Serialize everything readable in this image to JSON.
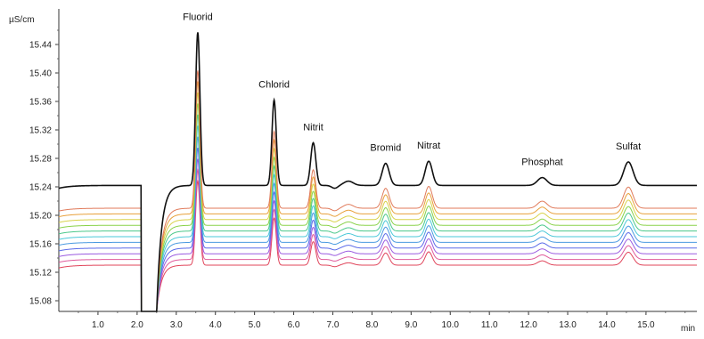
{
  "chart_data": {
    "type": "line",
    "title": "",
    "xlabel": "min",
    "ylabel": "µS/cm",
    "xlim": [
      0,
      16.3
    ],
    "ylim": [
      15.065,
      15.49
    ],
    "x_ticks": [
      1.0,
      2.0,
      3.0,
      4.0,
      5.0,
      6.0,
      7.0,
      8.0,
      9.0,
      10.0,
      11.0,
      12.0,
      13.0,
      14.0,
      15.0
    ],
    "x_tick_labels": [
      "1.0",
      "2.0",
      "3.0",
      "4.0",
      "5.0",
      "6.0",
      "7.0",
      "8.0",
      "9.0",
      "10.0",
      "11.0",
      "12.0",
      "13.0",
      "14.0",
      "15.0"
    ],
    "y_ticks": [
      15.08,
      15.12,
      15.16,
      15.2,
      15.24,
      15.28,
      15.32,
      15.36,
      15.4,
      15.44
    ],
    "y_tick_labels": [
      "15.08",
      "15.12",
      "15.16",
      "15.20",
      "15.24",
      "15.28",
      "15.32",
      "15.36",
      "15.40",
      "15.44"
    ],
    "grid": false,
    "legend": "none",
    "peaks": [
      {
        "name": "Fluorid",
        "x": 3.55,
        "height": 0.215,
        "width": 0.055
      },
      {
        "name": "Chlorid",
        "x": 5.5,
        "height": 0.12,
        "width": 0.055
      },
      {
        "name": "Nitrit",
        "x": 6.5,
        "height": 0.06,
        "width": 0.065
      },
      {
        "name": "Bromid",
        "x": 8.35,
        "height": 0.031,
        "width": 0.09
      },
      {
        "name": "Nitrat",
        "x": 9.45,
        "height": 0.034,
        "width": 0.09
      },
      {
        "name": "Phosphat",
        "x": 12.35,
        "height": 0.011,
        "width": 0.12
      },
      {
        "name": "Sulfat",
        "x": 14.55,
        "height": 0.033,
        "width": 0.12
      }
    ],
    "system_dip": {
      "start": 2.1,
      "end": 2.5,
      "min": 15.065
    },
    "series": [
      {
        "color": "#e0445a",
        "baseline": 15.13
      },
      {
        "color": "#e05a9a",
        "baseline": 15.138
      },
      {
        "color": "#9a5ae0",
        "baseline": 15.146
      },
      {
        "color": "#5a6ae8",
        "baseline": 15.154
      },
      {
        "color": "#4a9ae0",
        "baseline": 15.162
      },
      {
        "color": "#4ac8d8",
        "baseline": 15.17
      },
      {
        "color": "#4ac88a",
        "baseline": 15.178
      },
      {
        "color": "#8ad24a",
        "baseline": 15.186
      },
      {
        "color": "#d8d24a",
        "baseline": 15.194
      },
      {
        "color": "#e8a03a",
        "baseline": 15.202
      },
      {
        "color": "#e07a5a",
        "baseline": 15.21
      },
      {
        "color": "#111111",
        "baseline": 15.242
      }
    ]
  }
}
